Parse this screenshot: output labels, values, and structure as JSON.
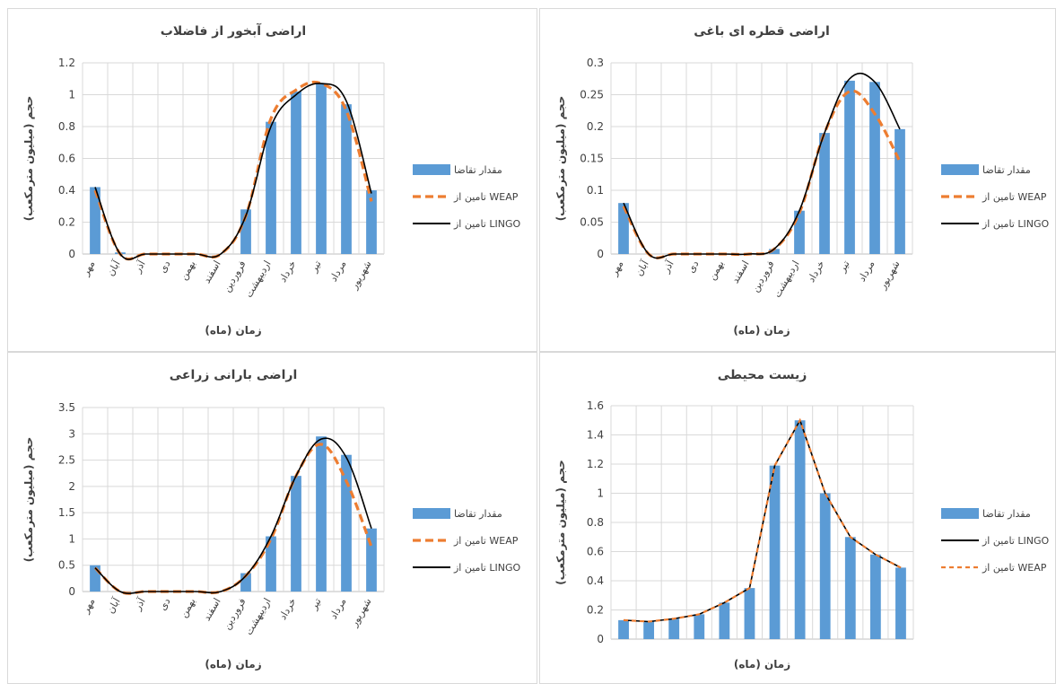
{
  "months": [
    "مهر",
    "آبان",
    "آذر",
    "دی",
    "بهمن",
    "اسفند",
    "فروردین",
    "اردیبهشت",
    "خرداد",
    "تیر",
    "مرداد",
    "شهریور"
  ],
  "colors": {
    "bar": "#5b9bd5",
    "weap": "#ed7d31",
    "lingo": "#000000",
    "grid": "#d9d9d9",
    "axis": "#404040",
    "border": "#d9d9d9"
  },
  "chart_data": [
    {
      "type": "bar",
      "title": "اراضی آبخور از فاضلاب",
      "xlabel": "زمان (ماه)",
      "ylabel": "حجم (میلیون مترمکعب)",
      "ylim": [
        0,
        1.2
      ],
      "yticks": [
        "0",
        "0.2",
        "0.4",
        "0.6",
        "0.8",
        "1",
        "1.2"
      ],
      "legend_order": [
        "demand",
        "weap",
        "lingo"
      ],
      "series": [
        {
          "key": "demand",
          "name": "مقدار تقاضا",
          "style": "bar",
          "values": [
            0.42,
            0.01,
            0,
            0,
            0,
            0,
            0.28,
            0.83,
            1.02,
            1.07,
            0.94,
            0.4
          ]
        },
        {
          "key": "weap",
          "name": "تامین از WEAP",
          "style": "dashed-line",
          "values": [
            0.4,
            0,
            0,
            0,
            0,
            0,
            0.24,
            0.85,
            1.03,
            1.07,
            0.9,
            0.33
          ]
        },
        {
          "key": "lingo",
          "name": "تامین از LINGO",
          "style": "line",
          "values": [
            0.42,
            0,
            0,
            0,
            0,
            0,
            0.24,
            0.8,
            1.0,
            1.07,
            0.96,
            0.38
          ]
        }
      ]
    },
    {
      "type": "bar",
      "title": "اراضی قطره ای باغی",
      "xlabel": "زمان (ماه)",
      "ylabel": "حجم (میلیون مترمکعب)",
      "ylim": [
        0,
        0.3
      ],
      "yticks": [
        "0",
        "0.05",
        "0.1",
        "0.15",
        "0.2",
        "0.25",
        "0.3"
      ],
      "legend_order": [
        "demand",
        "weap",
        "lingo"
      ],
      "series": [
        {
          "key": "demand",
          "name": "مقدار تقاضا",
          "style": "bar",
          "values": [
            0.08,
            0,
            0,
            0,
            0,
            0,
            0.008,
            0.068,
            0.19,
            0.272,
            0.27,
            0.196
          ]
        },
        {
          "key": "weap",
          "name": "تامین از WEAP",
          "style": "dashed-line",
          "values": [
            0.075,
            0,
            0,
            0,
            0,
            0,
            0.008,
            0.065,
            0.19,
            0.255,
            0.22,
            0.145
          ]
        },
        {
          "key": "lingo",
          "name": "تامین از LINGO",
          "style": "line",
          "values": [
            0.08,
            0,
            0,
            0,
            0,
            0,
            0.008,
            0.068,
            0.19,
            0.275,
            0.27,
            0.196
          ]
        }
      ]
    },
    {
      "type": "bar",
      "title": "اراضی بارانی زراعی",
      "xlabel": "زمان (ماه)",
      "ylabel": "حجم (میلیون مترمکعب)",
      "ylim": [
        0,
        3.5
      ],
      "yticks": [
        "0",
        "0.5",
        "1",
        "1.5",
        "2",
        "2.5",
        "3",
        "3.5"
      ],
      "legend_order": [
        "demand",
        "weap",
        "lingo"
      ],
      "series": [
        {
          "key": "demand",
          "name": "مقدار تقاضا",
          "style": "bar",
          "values": [
            0.5,
            0,
            0,
            0,
            0,
            0,
            0.35,
            1.05,
            2.2,
            2.95,
            2.6,
            1.2
          ]
        },
        {
          "key": "weap",
          "name": "تامین از WEAP",
          "style": "dashed-line",
          "values": [
            0.45,
            0,
            0,
            0,
            0,
            0,
            0.3,
            1.0,
            2.2,
            2.8,
            2.1,
            0.85
          ]
        },
        {
          "key": "lingo",
          "name": "تامین از LINGO",
          "style": "line",
          "values": [
            0.45,
            0,
            0,
            0,
            0,
            0,
            0.3,
            1.05,
            2.2,
            2.9,
            2.55,
            1.2
          ]
        }
      ]
    },
    {
      "type": "bar",
      "title": "زیست محیطی",
      "xlabel": "زمان (ماه)",
      "ylabel": "حجم (میلیون مترمکعب)",
      "ylim": [
        0,
        1.6
      ],
      "yticks": [
        "0",
        "0.2",
        "0.4",
        "0.6",
        "0.8",
        "1",
        "1.2",
        "1.4",
        "1.6"
      ],
      "show_month_labels": false,
      "legend_order": [
        "demand",
        "lingo",
        "weap"
      ],
      "series": [
        {
          "key": "demand",
          "name": "مقدار تقاضا",
          "style": "bar",
          "values": [
            0.13,
            0.12,
            0.14,
            0.17,
            0.25,
            0.35,
            1.19,
            1.5,
            1.0,
            0.7,
            0.58,
            0.49
          ]
        },
        {
          "key": "lingo",
          "name": "تامین از LINGO",
          "style": "line",
          "values": [
            0.13,
            0.12,
            0.14,
            0.17,
            0.25,
            0.35,
            1.19,
            1.5,
            1.0,
            0.7,
            0.58,
            0.49
          ]
        },
        {
          "key": "weap",
          "name": "تامین از WEAP",
          "style": "dashed-line",
          "values": [
            0.13,
            0.12,
            0.14,
            0.17,
            0.25,
            0.35,
            1.19,
            1.5,
            1.0,
            0.7,
            0.58,
            0.49
          ]
        }
      ]
    }
  ]
}
